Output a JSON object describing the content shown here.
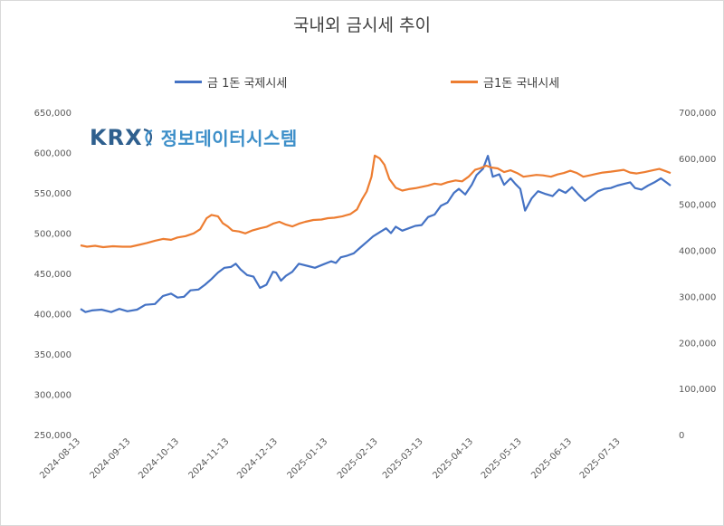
{
  "chart_data": {
    "type": "line",
    "title": "국내외 금시세 추이",
    "logo": {
      "brand": "KRX",
      "text": "정보데이터시스템"
    },
    "legend_position": "top",
    "grid": false,
    "x_ticks": [
      "2024-08-13",
      "2024-09-13",
      "2024-10-13",
      "2024-11-13",
      "2024-12-13",
      "2025-01-13",
      "2025-02-13",
      "2025-03-13",
      "2025-04-13",
      "2025-05-13",
      "2025-06-13",
      "2025-07-13"
    ],
    "x_range": [
      "2024-08-13",
      "2025-08-13"
    ],
    "y_left": {
      "min": 250000,
      "max": 650000,
      "ticks": [
        "250,000",
        "300,000",
        "350,000",
        "400,000",
        "450,000",
        "500,000",
        "550,000",
        "600,000",
        "650,000"
      ]
    },
    "y_right": {
      "min": 0,
      "max": 700000,
      "ticks": [
        "0",
        "100,000",
        "200,000",
        "300,000",
        "400,000",
        "500,000",
        "600,000",
        "700,000"
      ]
    },
    "series": [
      {
        "name": "금 1돈 국제시세",
        "axis": "left",
        "color": "#4472c4",
        "points": [
          [
            "2024-08-13",
            406000
          ],
          [
            "2024-08-16",
            402000
          ],
          [
            "2024-08-20",
            404000
          ],
          [
            "2024-08-26",
            405000
          ],
          [
            "2024-09-01",
            402000
          ],
          [
            "2024-09-06",
            406000
          ],
          [
            "2024-09-11",
            403000
          ],
          [
            "2024-09-17",
            405000
          ],
          [
            "2024-09-22",
            411000
          ],
          [
            "2024-09-28",
            412000
          ],
          [
            "2024-10-03",
            422000
          ],
          [
            "2024-10-08",
            425000
          ],
          [
            "2024-10-12",
            420000
          ],
          [
            "2024-10-16",
            421000
          ],
          [
            "2024-10-20",
            429000
          ],
          [
            "2024-10-25",
            430000
          ],
          [
            "2024-10-29",
            436000
          ],
          [
            "2024-11-02",
            443000
          ],
          [
            "2024-11-06",
            451000
          ],
          [
            "2024-11-10",
            457000
          ],
          [
            "2024-11-14",
            458000
          ],
          [
            "2024-11-17",
            462000
          ],
          [
            "2024-11-20",
            455000
          ],
          [
            "2024-11-24",
            448000
          ],
          [
            "2024-11-28",
            446000
          ],
          [
            "2024-12-02",
            432000
          ],
          [
            "2024-12-06",
            436000
          ],
          [
            "2024-12-10",
            452000
          ],
          [
            "2024-12-12",
            451000
          ],
          [
            "2024-12-15",
            441000
          ],
          [
            "2024-12-18",
            447000
          ],
          [
            "2024-12-22",
            452000
          ],
          [
            "2024-12-26",
            462000
          ],
          [
            "2025-01-01",
            459000
          ],
          [
            "2025-01-05",
            457000
          ],
          [
            "2025-01-10",
            461000
          ],
          [
            "2025-01-15",
            465000
          ],
          [
            "2025-01-18",
            463000
          ],
          [
            "2025-01-21",
            470000
          ],
          [
            "2025-01-25",
            472000
          ],
          [
            "2025-01-29",
            475000
          ],
          [
            "2025-02-02",
            482000
          ],
          [
            "2025-02-06",
            489000
          ],
          [
            "2025-02-10",
            496000
          ],
          [
            "2025-02-14",
            501000
          ],
          [
            "2025-02-18",
            506000
          ],
          [
            "2025-02-21",
            500000
          ],
          [
            "2025-02-24",
            508000
          ],
          [
            "2025-02-28",
            503000
          ],
          [
            "2025-03-04",
            506000
          ],
          [
            "2025-03-08",
            509000
          ],
          [
            "2025-03-12",
            510000
          ],
          [
            "2025-03-16",
            520000
          ],
          [
            "2025-03-20",
            523000
          ],
          [
            "2025-03-24",
            534000
          ],
          [
            "2025-03-28",
            538000
          ],
          [
            "2025-04-01",
            550000
          ],
          [
            "2025-04-04",
            555000
          ],
          [
            "2025-04-08",
            548000
          ],
          [
            "2025-04-12",
            560000
          ],
          [
            "2025-04-15",
            572000
          ],
          [
            "2025-04-19",
            580000
          ],
          [
            "2025-04-22",
            596000
          ],
          [
            "2025-04-25",
            570000
          ],
          [
            "2025-04-29",
            573000
          ],
          [
            "2025-05-02",
            560000
          ],
          [
            "2025-05-06",
            568000
          ],
          [
            "2025-05-09",
            561000
          ],
          [
            "2025-05-12",
            555000
          ],
          [
            "2025-05-15",
            528000
          ],
          [
            "2025-05-19",
            543000
          ],
          [
            "2025-05-23",
            552000
          ],
          [
            "2025-05-27",
            549000
          ],
          [
            "2025-06-01",
            546000
          ],
          [
            "2025-06-05",
            554000
          ],
          [
            "2025-06-09",
            550000
          ],
          [
            "2025-06-13",
            557000
          ],
          [
            "2025-06-17",
            548000
          ],
          [
            "2025-06-21",
            540000
          ],
          [
            "2025-06-25",
            546000
          ],
          [
            "2025-06-29",
            552000
          ],
          [
            "2025-07-03",
            555000
          ],
          [
            "2025-07-07",
            556000
          ],
          [
            "2025-07-11",
            559000
          ],
          [
            "2025-07-15",
            561000
          ],
          [
            "2025-07-19",
            563000
          ],
          [
            "2025-07-22",
            556000
          ],
          [
            "2025-07-26",
            554000
          ],
          [
            "2025-07-30",
            559000
          ],
          [
            "2025-08-03",
            563000
          ],
          [
            "2025-08-07",
            568000
          ],
          [
            "2025-08-11",
            562000
          ],
          [
            "2025-08-13",
            559000
          ]
        ]
      },
      {
        "name": "금1돈 국내시세",
        "axis": "right",
        "color": "#ed7d31",
        "points": [
          [
            "2024-08-13",
            411000
          ],
          [
            "2024-08-17",
            408000
          ],
          [
            "2024-08-22",
            410000
          ],
          [
            "2024-08-27",
            407000
          ],
          [
            "2024-09-02",
            409000
          ],
          [
            "2024-09-08",
            408000
          ],
          [
            "2024-09-13",
            408000
          ],
          [
            "2024-09-18",
            412000
          ],
          [
            "2024-09-23",
            416000
          ],
          [
            "2024-09-28",
            421000
          ],
          [
            "2024-10-03",
            425000
          ],
          [
            "2024-10-08",
            423000
          ],
          [
            "2024-10-12",
            428000
          ],
          [
            "2024-10-17",
            431000
          ],
          [
            "2024-10-22",
            437000
          ],
          [
            "2024-10-26",
            446000
          ],
          [
            "2024-10-30",
            470000
          ],
          [
            "2024-11-02",
            477000
          ],
          [
            "2024-11-06",
            474000
          ],
          [
            "2024-11-09",
            459000
          ],
          [
            "2024-11-12",
            452000
          ],
          [
            "2024-11-15",
            443000
          ],
          [
            "2024-11-19",
            441000
          ],
          [
            "2024-11-23",
            437000
          ],
          [
            "2024-11-27",
            443000
          ],
          [
            "2024-12-02",
            448000
          ],
          [
            "2024-12-06",
            451000
          ],
          [
            "2024-12-10",
            458000
          ],
          [
            "2024-12-14",
            462000
          ],
          [
            "2024-12-18",
            456000
          ],
          [
            "2024-12-22",
            452000
          ],
          [
            "2024-12-26",
            458000
          ],
          [
            "2024-12-30",
            462000
          ],
          [
            "2025-01-04",
            466000
          ],
          [
            "2025-01-09",
            467000
          ],
          [
            "2025-01-13",
            470000
          ],
          [
            "2025-01-17",
            471000
          ],
          [
            "2025-01-22",
            474000
          ],
          [
            "2025-01-27",
            479000
          ],
          [
            "2025-01-31",
            489000
          ],
          [
            "2025-02-03",
            510000
          ],
          [
            "2025-02-06",
            528000
          ],
          [
            "2025-02-09",
            560000
          ],
          [
            "2025-02-11",
            606000
          ],
          [
            "2025-02-14",
            600000
          ],
          [
            "2025-02-17",
            586000
          ],
          [
            "2025-02-20",
            555000
          ],
          [
            "2025-02-24",
            536000
          ],
          [
            "2025-02-28",
            530000
          ],
          [
            "2025-03-04",
            533000
          ],
          [
            "2025-03-08",
            535000
          ],
          [
            "2025-03-12",
            538000
          ],
          [
            "2025-03-16",
            541000
          ],
          [
            "2025-03-20",
            545000
          ],
          [
            "2025-03-24",
            543000
          ],
          [
            "2025-03-28",
            548000
          ],
          [
            "2025-04-02",
            552000
          ],
          [
            "2025-04-06",
            550000
          ],
          [
            "2025-04-10",
            560000
          ],
          [
            "2025-04-14",
            575000
          ],
          [
            "2025-04-17",
            578000
          ],
          [
            "2025-04-21",
            584000
          ],
          [
            "2025-04-24",
            580000
          ],
          [
            "2025-04-28",
            578000
          ],
          [
            "2025-05-02",
            570000
          ],
          [
            "2025-05-06",
            574000
          ],
          [
            "2025-05-10",
            568000
          ],
          [
            "2025-05-14",
            560000
          ],
          [
            "2025-05-18",
            562000
          ],
          [
            "2025-05-22",
            564000
          ],
          [
            "2025-05-26",
            563000
          ],
          [
            "2025-05-31",
            560000
          ],
          [
            "2025-06-04",
            565000
          ],
          [
            "2025-06-08",
            568000
          ],
          [
            "2025-06-12",
            573000
          ],
          [
            "2025-06-16",
            568000
          ],
          [
            "2025-06-20",
            560000
          ],
          [
            "2025-06-24",
            563000
          ],
          [
            "2025-06-28",
            566000
          ],
          [
            "2025-07-02",
            569000
          ],
          [
            "2025-07-07",
            571000
          ],
          [
            "2025-07-11",
            573000
          ],
          [
            "2025-07-15",
            575000
          ],
          [
            "2025-07-19",
            569000
          ],
          [
            "2025-07-23",
            567000
          ],
          [
            "2025-07-28",
            570000
          ],
          [
            "2025-08-02",
            574000
          ],
          [
            "2025-08-06",
            577000
          ],
          [
            "2025-08-10",
            572000
          ],
          [
            "2025-08-13",
            568000
          ]
        ]
      }
    ]
  }
}
